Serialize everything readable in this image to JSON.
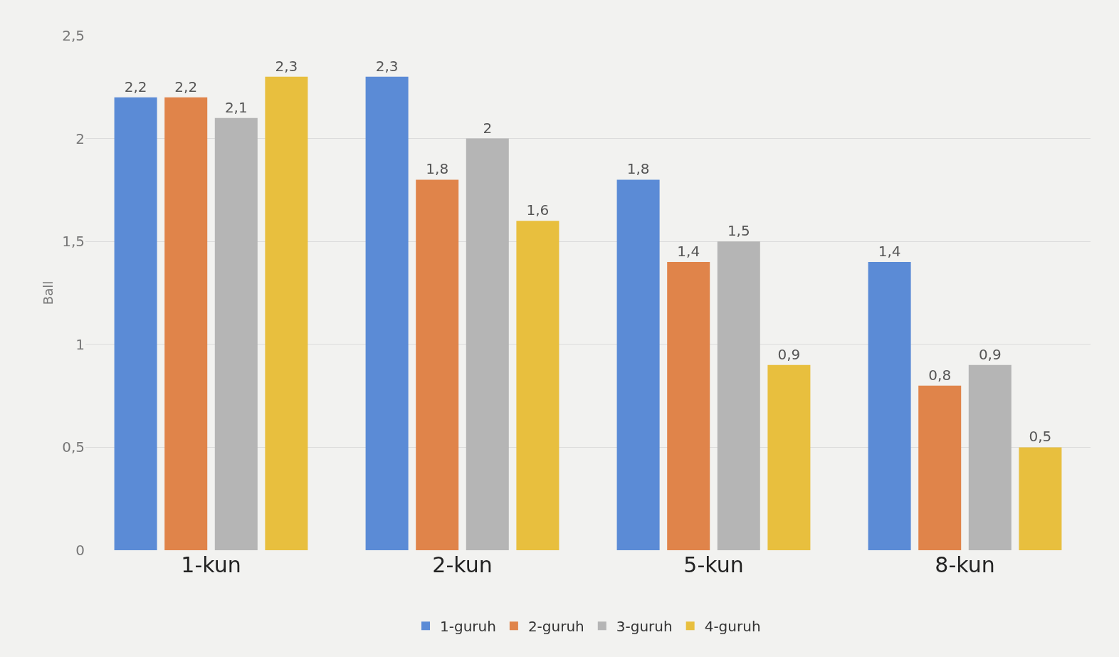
{
  "chart_data": {
    "type": "bar",
    "ylabel": "Ball",
    "categories": [
      "1-kun",
      "2-kun",
      "5-kun",
      "8-kun"
    ],
    "series": [
      {
        "name": "1-guruh",
        "color": "#5b8bd6",
        "values": [
          2.2,
          2.3,
          1.8,
          1.4
        ],
        "value_labels": [
          "2,2",
          "2,3",
          "1,8",
          "1,4"
        ]
      },
      {
        "name": "2-guruh",
        "color": "#e0844a",
        "values": [
          2.2,
          1.8,
          1.4,
          0.8
        ],
        "value_labels": [
          "2,2",
          "1,8",
          "1,4",
          "0,8"
        ]
      },
      {
        "name": "3-guruh",
        "color": "#b5b5b5",
        "values": [
          2.1,
          2,
          1.5,
          0.9
        ],
        "value_labels": [
          "2,1",
          "2",
          "1,5",
          "0,9"
        ]
      },
      {
        "name": "4-guruh",
        "color": "#e8bf3e",
        "values": [
          2.3,
          1.6,
          0.9,
          0.5
        ],
        "value_labels": [
          "2,3",
          "1,6",
          "0,9",
          "0,5"
        ]
      }
    ],
    "ylim": [
      0,
      2.5
    ],
    "yticks": [
      0,
      {
        "value": 0.5,
        "label": "0,5"
      },
      1,
      {
        "value": 1.5,
        "label": "1,5"
      },
      2,
      {
        "value": 2.5,
        "label": "2,5"
      }
    ],
    "grid": "y",
    "legend": "bottom"
  }
}
